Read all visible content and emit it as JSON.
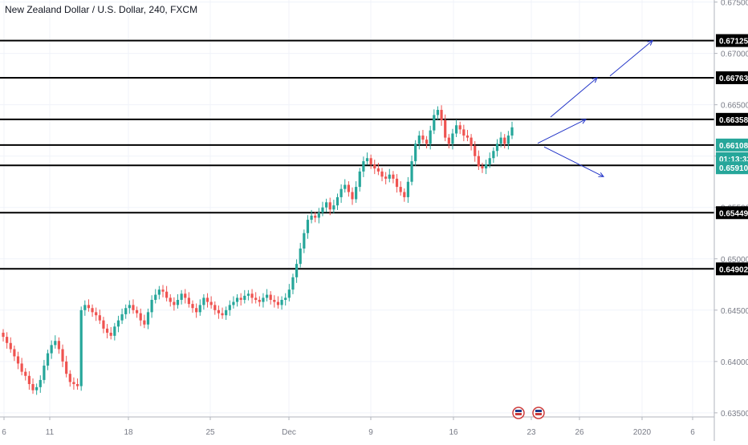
{
  "title": "New Zealand Dollar / U.S. Dollar, 240, FXCM",
  "chart_data": {
    "type": "candlestick",
    "symbol": "NZDUSD",
    "interval": "240",
    "source": "FXCM",
    "ylim": [
      0.6346,
      0.6752
    ],
    "yticks": [
      "0.67500",
      "0.67000",
      "0.66500",
      "0.66000",
      "0.65500",
      "0.65000",
      "0.64500",
      "0.64000",
      "0.63500"
    ],
    "xticks": [
      "6",
      "11",
      "18",
      "25",
      "Dec",
      "9",
      "16",
      "23",
      "26",
      "2020",
      "6"
    ],
    "horizontal_levels": [
      0.67125,
      0.66763,
      0.66358,
      0.66108,
      0.6591,
      0.65449,
      0.64902
    ],
    "price_labels": [
      {
        "value": "0.67125",
        "style": "dark"
      },
      {
        "value": "0.66763",
        "style": "dark"
      },
      {
        "value": "0.66358",
        "style": "dark"
      },
      {
        "value": "0.66108",
        "style": "current"
      },
      {
        "value": "01:13:33",
        "style": "current"
      },
      {
        "value": "0.65910",
        "style": "current"
      },
      {
        "value": "0.65449",
        "style": "dark"
      },
      {
        "value": "0.64902",
        "style": "dark"
      }
    ],
    "close_path": [
      0.6424,
      0.6418,
      0.6412,
      0.6405,
      0.6398,
      0.639,
      0.6386,
      0.6378,
      0.6372,
      0.6375,
      0.6382,
      0.6396,
      0.6408,
      0.6416,
      0.642,
      0.6412,
      0.64,
      0.6388,
      0.638,
      0.6378,
      0.6376,
      0.645,
      0.6455,
      0.6452,
      0.6448,
      0.6445,
      0.644,
      0.6432,
      0.6428,
      0.6425,
      0.6434,
      0.644,
      0.6446,
      0.6452,
      0.6455,
      0.645,
      0.6447,
      0.644,
      0.6436,
      0.6448,
      0.646,
      0.6465,
      0.647,
      0.6468,
      0.6462,
      0.6458,
      0.6455,
      0.646,
      0.6466,
      0.6462,
      0.6456,
      0.6452,
      0.6448,
      0.6455,
      0.6462,
      0.6458,
      0.6455,
      0.645,
      0.6447,
      0.6445,
      0.645,
      0.6455,
      0.6458,
      0.6462,
      0.646,
      0.6464,
      0.6466,
      0.6462,
      0.646,
      0.6458,
      0.6462,
      0.6465,
      0.646,
      0.6458,
      0.6455,
      0.646,
      0.6462,
      0.647,
      0.6482,
      0.6495,
      0.651,
      0.6525,
      0.6538,
      0.6542,
      0.654,
      0.6545,
      0.655,
      0.6555,
      0.6548,
      0.6552,
      0.656,
      0.6568,
      0.6572,
      0.6565,
      0.6558,
      0.657,
      0.6585,
      0.6595,
      0.6598,
      0.6592,
      0.6588,
      0.6585,
      0.658,
      0.6578,
      0.6582,
      0.6578,
      0.657,
      0.6565,
      0.656,
      0.6575,
      0.6595,
      0.6612,
      0.662,
      0.6616,
      0.6612,
      0.6625,
      0.664,
      0.6645,
      0.6635,
      0.6618,
      0.6612,
      0.6622,
      0.663,
      0.6626,
      0.662,
      0.6618,
      0.661,
      0.66,
      0.659,
      0.6588,
      0.6592,
      0.6598,
      0.6605,
      0.6612,
      0.6618,
      0.6612,
      0.662,
      0.6628
    ],
    "projection_arrows": [
      {
        "from": [
          0.66125,
          "t1"
        ],
        "to": [
          0.66358,
          "t2"
        ]
      },
      {
        "from": [
          0.6609,
          "t1"
        ],
        "to": [
          0.658,
          "t2"
        ]
      },
      {
        "from": [
          0.6638,
          "t1"
        ],
        "to": [
          0.66763,
          "t2"
        ]
      },
      {
        "from": [
          0.6678,
          "t1"
        ],
        "to": [
          0.67125,
          "t2"
        ]
      }
    ],
    "colors": {
      "up": "#26a69a",
      "down": "#ef5350",
      "level_line": "#000000",
      "arrow": "#2335c8",
      "current_label": "#26a69a",
      "dark_label": "#000000",
      "axis_text": "#787b86",
      "grid": "#f0f3fa"
    },
    "grid": true
  }
}
